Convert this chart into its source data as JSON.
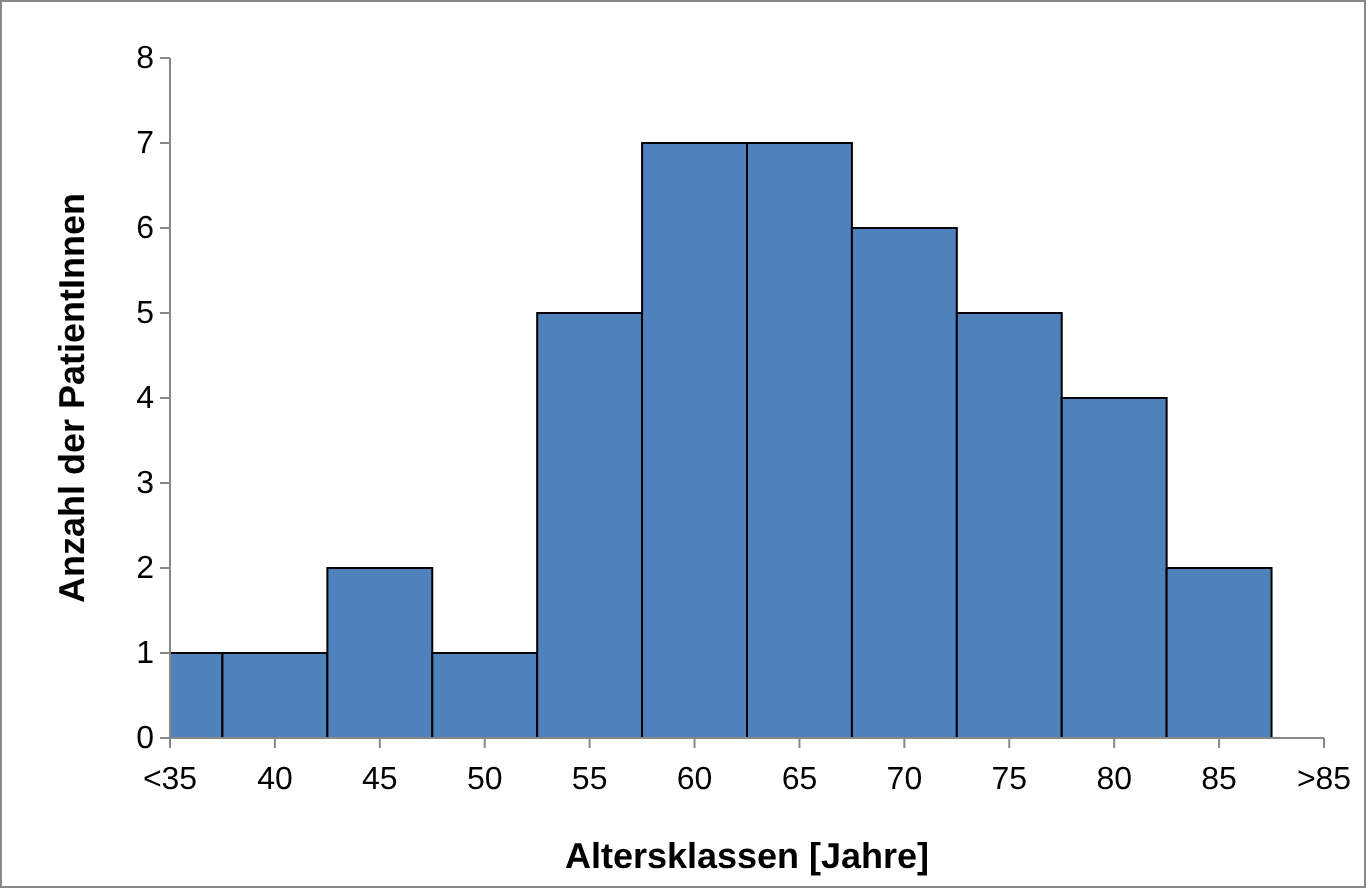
{
  "chart_data": {
    "type": "histogram",
    "xlabel": "Altersklassen [Jahre]",
    "ylabel": "Anzahl der PatientInnen",
    "bins": [
      35,
      37.5,
      42.5,
      47.5,
      52.5,
      57.5,
      62.5,
      67.5,
      72.5,
      77.5,
      82.5,
      87.5
    ],
    "values": [
      1,
      1,
      2,
      1,
      5,
      7,
      7,
      6,
      5,
      4,
      2
    ],
    "color": "#4f81bd",
    "xlim": [
      35,
      90
    ],
    "xticks": [
      {
        "value": 35,
        "label": "<35"
      },
      40,
      45,
      50,
      55,
      60,
      65,
      70,
      75,
      80,
      85,
      {
        "value": 90,
        "label": ">85"
      }
    ],
    "ylim": [
      0,
      8
    ],
    "yticks": [
      0,
      1,
      2,
      3,
      4,
      5,
      6,
      7,
      8
    ],
    "grid": false
  }
}
